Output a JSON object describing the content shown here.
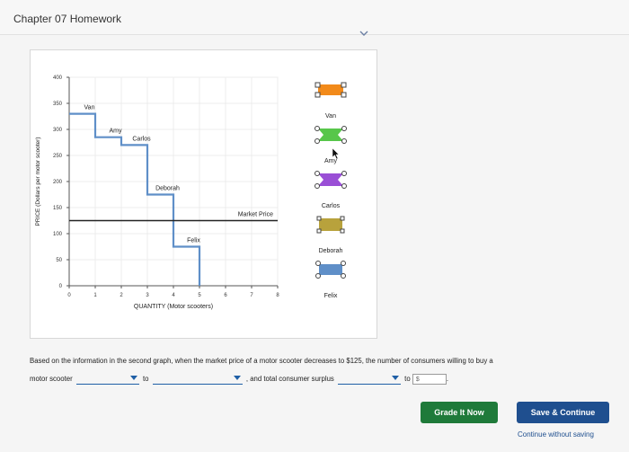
{
  "header": {
    "title": "Chapter 07 Homework"
  },
  "chart_data": {
    "type": "line",
    "xlabel": "QUANTITY (Motor scooters)",
    "ylabel": "PRICE (Dollars per motor scooter)",
    "xlim": [
      0,
      8
    ],
    "ylim": [
      0,
      400
    ],
    "x_ticks": [
      0,
      1,
      2,
      3,
      4,
      5,
      6,
      7,
      8
    ],
    "y_ticks": [
      0,
      50,
      100,
      150,
      200,
      250,
      300,
      350,
      400
    ],
    "demand_curve": {
      "steps": [
        {
          "label": "Van",
          "price": 330,
          "from_q": 0,
          "to_q": 1
        },
        {
          "label": "Amy",
          "price": 285,
          "from_q": 1,
          "to_q": 2
        },
        {
          "label": "Carlos",
          "price": 270,
          "from_q": 2,
          "to_q": 3
        },
        {
          "label": "Deborah",
          "price": 175,
          "from_q": 3,
          "to_q": 4
        },
        {
          "label": "Felix",
          "price": 75,
          "from_q": 4,
          "to_q": 5
        }
      ],
      "end_q": 5
    },
    "market_price": {
      "label": "Market Price",
      "value": 125
    }
  },
  "tool_legend": {
    "items": [
      {
        "label": "Van",
        "color": "#f28a1a"
      },
      {
        "label": "Amy",
        "color": "#57c64a"
      },
      {
        "label": "Carlos",
        "color": "#9a4fd6"
      },
      {
        "label": "Deborah",
        "color": "#b8a23c"
      },
      {
        "label": "Felix",
        "color": "#5f8fc8"
      }
    ]
  },
  "question": {
    "text1": "Based on the information in the second graph, when the market price of a motor scooter decreases to $125, the number of consumers willing to buy a",
    "text2": "motor scooter",
    "text3": "to",
    "text4": ", and total consumer surplus",
    "text5": "to",
    "dollar_placeholder": "$"
  },
  "buttons": {
    "grade": "Grade It Now",
    "save": "Save & Continue",
    "continue_without_saving": "Continue without saving"
  }
}
